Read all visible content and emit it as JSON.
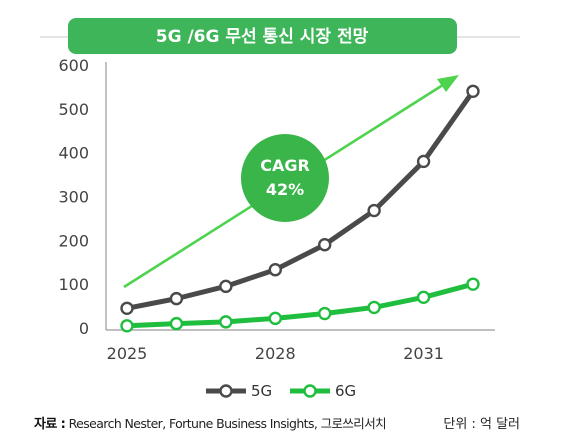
{
  "chart_data": {
    "type": "line",
    "title": "5G /6G 무선 통신 시장 전망",
    "x": [
      2025,
      2026,
      2027,
      2028,
      2029,
      2030,
      2031,
      2032
    ],
    "x_tick_labels": [
      "2025",
      "2028",
      "2031"
    ],
    "y_ticks": [
      0,
      100,
      200,
      300,
      400,
      500,
      600
    ],
    "ylim": [
      0,
      600
    ],
    "series": [
      {
        "name": "5G",
        "color": "#4a4a4a",
        "values": [
          45,
          67,
          95,
          133,
          190,
          268,
          380,
          540
        ]
      },
      {
        "name": "6G",
        "color": "#1fbe3f",
        "values": [
          5,
          10,
          14,
          22,
          33,
          47,
          70,
          100
        ]
      }
    ],
    "legend_placement": "bottom-center",
    "annotation": {
      "line1": "CAGR",
      "line2": "42%"
    }
  },
  "footer": {
    "source_label": "자료 :",
    "source_text": " Research Nester, Fortune Business Insights, 그로쓰리서치",
    "unit": "단위 : 억 달러"
  }
}
